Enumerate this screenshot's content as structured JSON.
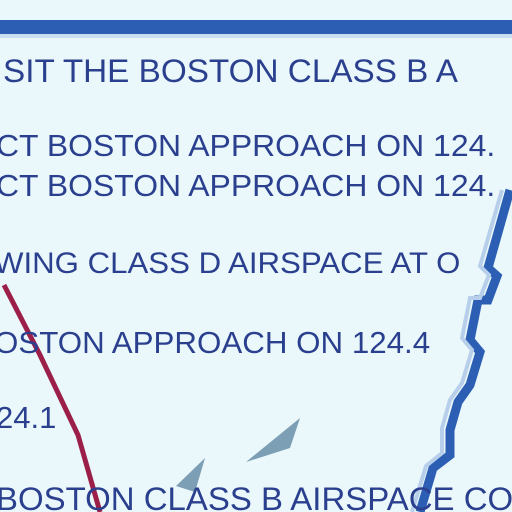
{
  "chart_notes": {
    "line1": "SIT THE BOSTON CLASS B A",
    "line2": "CT BOSTON APPROACH ON 124.",
    "line3": "CT BOSTON APPROACH ON 124.",
    "line4": "WING CLASS D AIRSPACE AT O",
    "line5": "OSTON APPROACH ON 124.4",
    "line6": "24.1",
    "line7": "BOSTON CLASS B AIRSPACE CO"
  },
  "colors": {
    "background": "#eaf8fb",
    "text": "#2a3f8e",
    "border_blue": "#2c5fb4",
    "route_maroon": "#9c1f4a",
    "shading": "#7c9fb6"
  }
}
